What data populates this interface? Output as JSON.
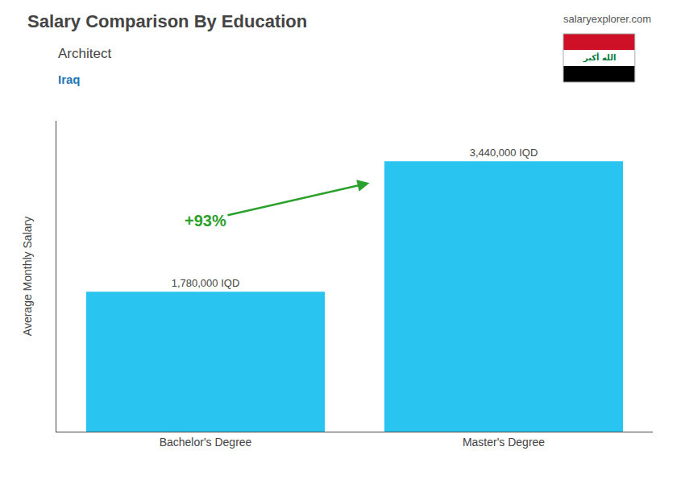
{
  "chart_data": {
    "type": "bar",
    "title": "Salary Comparison By Education",
    "subtitle": "Architect",
    "categories": [
      "Bachelor's Degree",
      "Master's Degree"
    ],
    "values": [
      1780000,
      3440000
    ],
    "value_labels": [
      "1,780,000 IQD",
      "3,440,000 IQD"
    ],
    "data_labels": true,
    "color": "#29c4f0",
    "ylabel": "Average Monthly Salary",
    "ylim": [
      0,
      3956000
    ],
    "tick_labels": "x",
    "grid": false,
    "annotations": [
      "Iraq",
      "salaryexplorer.com",
      "+93%",
      "الله أكبر"
    ]
  }
}
